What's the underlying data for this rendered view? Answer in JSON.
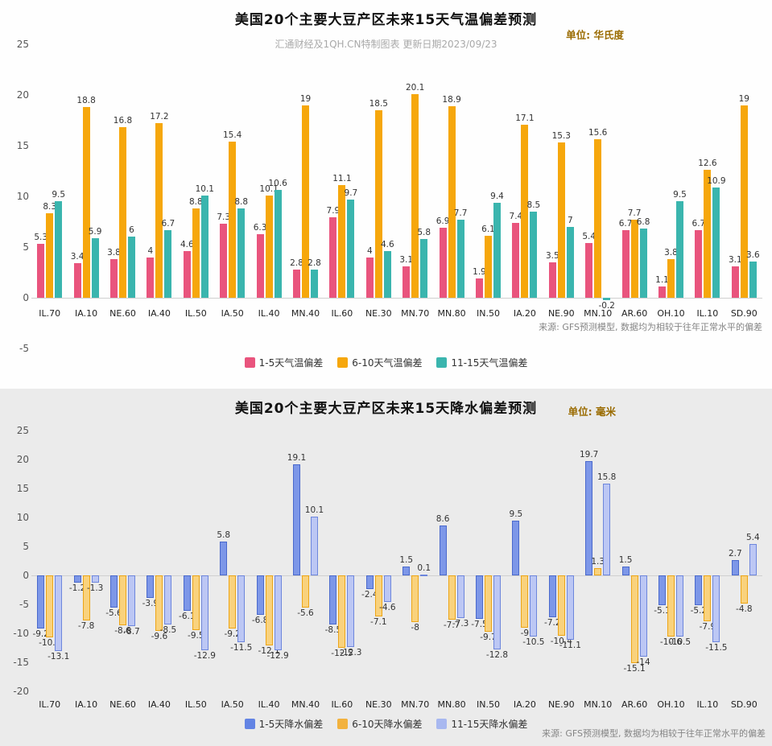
{
  "chart_data": [
    {
      "type": "bar",
      "title": "美国20个主要大豆产区未来15天气温偏差预测",
      "unit": "单位: 华氏度",
      "subtitle": "汇通财经及1QH.CN特制图表 更新日期2023/09/23",
      "source": "来源: GFS预测模型, 数据均为相较于往年正常水平的偏差",
      "categories": [
        "IL.70",
        "IA.10",
        "NE.60",
        "IA.40",
        "IL.50",
        "IA.50",
        "IL.40",
        "MN.40",
        "IL.60",
        "NE.30",
        "MN.70",
        "MN.80",
        "IN.50",
        "IA.20",
        "NE.90",
        "MN.10",
        "AR.60",
        "OH.10",
        "IL.10",
        "SD.90"
      ],
      "series": [
        {
          "name": "1-5天气温偏差",
          "color": "#e9547d",
          "values": [
            5.3,
            3.4,
            3.8,
            4,
            4.6,
            7.3,
            6.3,
            2.8,
            7.9,
            4,
            3.1,
            6.9,
            1.9,
            7.4,
            3.5,
            5.4,
            6.7,
            1.1,
            6.7,
            3.1
          ]
        },
        {
          "name": "6-10天气温偏差",
          "color": "#f6a70c",
          "values": [
            8.3,
            18.8,
            16.8,
            17.2,
            8.8,
            15.4,
            10.1,
            19,
            11.1,
            18.5,
            20.1,
            18.9,
            6.1,
            17.1,
            15.3,
            15.6,
            7.7,
            3.8,
            12.6,
            19
          ]
        },
        {
          "name": "11-15天气温偏差",
          "color": "#3ab5ae",
          "values": [
            9.5,
            5.9,
            6,
            6.7,
            10.1,
            8.8,
            10.6,
            2.8,
            9.7,
            4.6,
            5.8,
            7.7,
            9.4,
            8.5,
            7,
            -0.2,
            6.8,
            9.5,
            10.9,
            3.6
          ]
        }
      ],
      "ylim": [
        -5,
        25
      ],
      "yticks": [
        25,
        20,
        15,
        10,
        5,
        0,
        -5
      ],
      "grid": false,
      "legend_position": "bottom"
    },
    {
      "type": "bar",
      "title": "美国20个主要大豆产区未来15天降水偏差预测",
      "unit": "单位: 毫米",
      "source": "来源: GFS预测模型, 数据均为相较于往年正常水平的偏差",
      "categories": [
        "IL.70",
        "IA.10",
        "NE.60",
        "IA.40",
        "IL.50",
        "IA.50",
        "IL.40",
        "MN.40",
        "IL.60",
        "NE.30",
        "MN.70",
        "MN.80",
        "IN.50",
        "IA.20",
        "NE.90",
        "MN.10",
        "AR.60",
        "OH.10",
        "IL.10",
        "SD.90"
      ],
      "series": [
        {
          "name": "1-5天降水偏差",
          "color": "#6384e4",
          "fill": "#7d97e8",
          "border": "#4a69cc",
          "values": [
            -9.2,
            -1.2,
            -5.6,
            -3.9,
            -6.1,
            5.8,
            -6.8,
            19.1,
            -8.5,
            -2.4,
            1.5,
            8.6,
            -7.5,
            9.5,
            -7.2,
            19.7,
            1.5,
            -5.1,
            -5.2,
            2.7
          ]
        },
        {
          "name": "6-10天降水偏差",
          "color": "#f2b23e",
          "fill": "#f9d27d",
          "border": "#eda516",
          "values": [
            -10.7,
            -7.8,
            -8.6,
            -9.6,
            -9.5,
            -9.2,
            -12.1,
            -5.6,
            -12.5,
            -7.1,
            -8,
            -7.7,
            -9.7,
            -9,
            -10.4,
            1.3,
            -15.1,
            -10.6,
            -7.9,
            -4.8
          ]
        },
        {
          "name": "11-15天降水偏差",
          "color": "#a8b8f0",
          "fill": "#bcc7f4",
          "border": "#6d86dc",
          "values": [
            -13.1,
            -1.3,
            -8.7,
            -8.5,
            -12.9,
            -11.5,
            -12.9,
            10.1,
            -12.3,
            -4.6,
            0.1,
            -7.3,
            -12.8,
            -10.5,
            -11.1,
            15.8,
            -14,
            -10.5,
            -11.5,
            5.4
          ]
        }
      ],
      "ylim": [
        -20,
        25
      ],
      "yticks": [
        25,
        20,
        15,
        10,
        5,
        0,
        -5,
        -10,
        -15,
        -20
      ],
      "grid": false,
      "legend_position": "bottom"
    }
  ]
}
